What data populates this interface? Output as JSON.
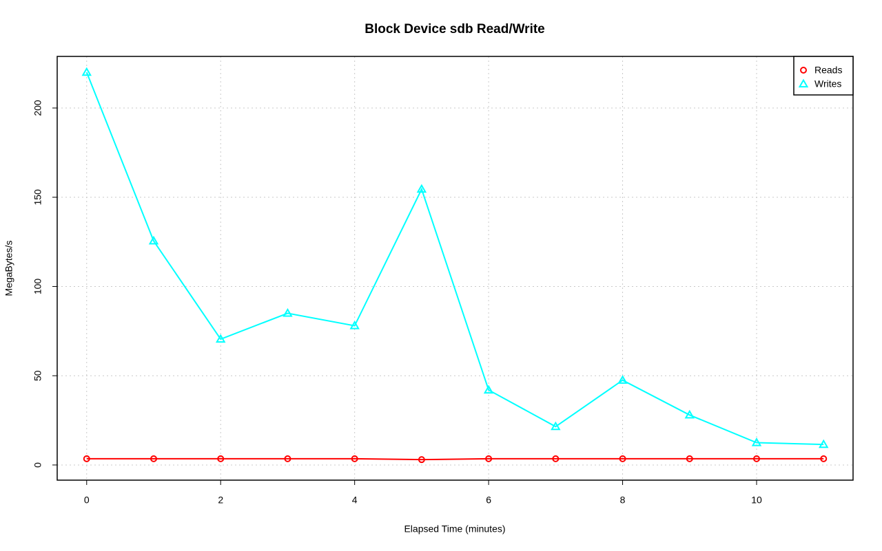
{
  "chart_data": {
    "type": "line",
    "title": "Block Device sdb Read/Write",
    "x_label": "Elapsed Time (minutes)",
    "y_label": "MegaBytes/s",
    "x": [
      0,
      1,
      2,
      3,
      4,
      5,
      6,
      7,
      8,
      9,
      10,
      11
    ],
    "series": [
      {
        "name": "Reads",
        "color": "#ff0000",
        "marker": "circle",
        "values": [
          3.5,
          3.5,
          3.5,
          3.5,
          3.5,
          3,
          3.5,
          3.5,
          3.5,
          3.5,
          3.5,
          3.5
        ]
      },
      {
        "name": "Writes",
        "color": "#00ffff",
        "marker": "triangle",
        "values": [
          220,
          125.5,
          70.5,
          85,
          78,
          154.5,
          42,
          21.5,
          47.5,
          28,
          12.5,
          11.5
        ]
      }
    ],
    "xlim": [
      -0.44,
      11.44
    ],
    "ylim": [
      -8.5,
      228.9
    ],
    "xticks": [
      0,
      2,
      4,
      6,
      8,
      10
    ],
    "yticks": [
      0,
      50,
      100,
      150,
      200
    ],
    "grid": true,
    "legend": "top-right"
  }
}
